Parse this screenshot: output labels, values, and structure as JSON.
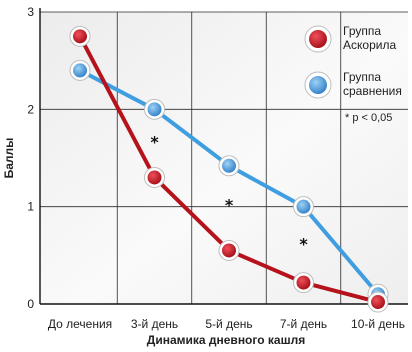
{
  "chart_data": {
    "type": "line",
    "title": "",
    "xlabel": "Динамика дневного кашля",
    "ylabel": "Баллы",
    "ylim": [
      0,
      3
    ],
    "yticks": [
      "0",
      "1",
      "2",
      "3"
    ],
    "categories": [
      "До лечения",
      "3-й день",
      "5-й день",
      "7-й день",
      "10-й день"
    ],
    "grid": true,
    "legend_position": "top-right",
    "series": [
      {
        "name": "Группа Аскорила",
        "color": "#b5121b",
        "values": [
          2.75,
          1.3,
          0.55,
          0.22,
          0.02
        ]
      },
      {
        "name": "Группа сравнения",
        "color": "#3f9ee0",
        "values": [
          2.4,
          2.0,
          1.42,
          1.0,
          0.1
        ]
      }
    ],
    "significance_marks": [
      {
        "x": "3-й день",
        "y": 1.67,
        "label": "*"
      },
      {
        "x": "5-й день",
        "y": 1.02,
        "label": "*"
      },
      {
        "x": "7-й день",
        "y": 0.62,
        "label": "*"
      }
    ],
    "note": "* p < 0,05"
  }
}
